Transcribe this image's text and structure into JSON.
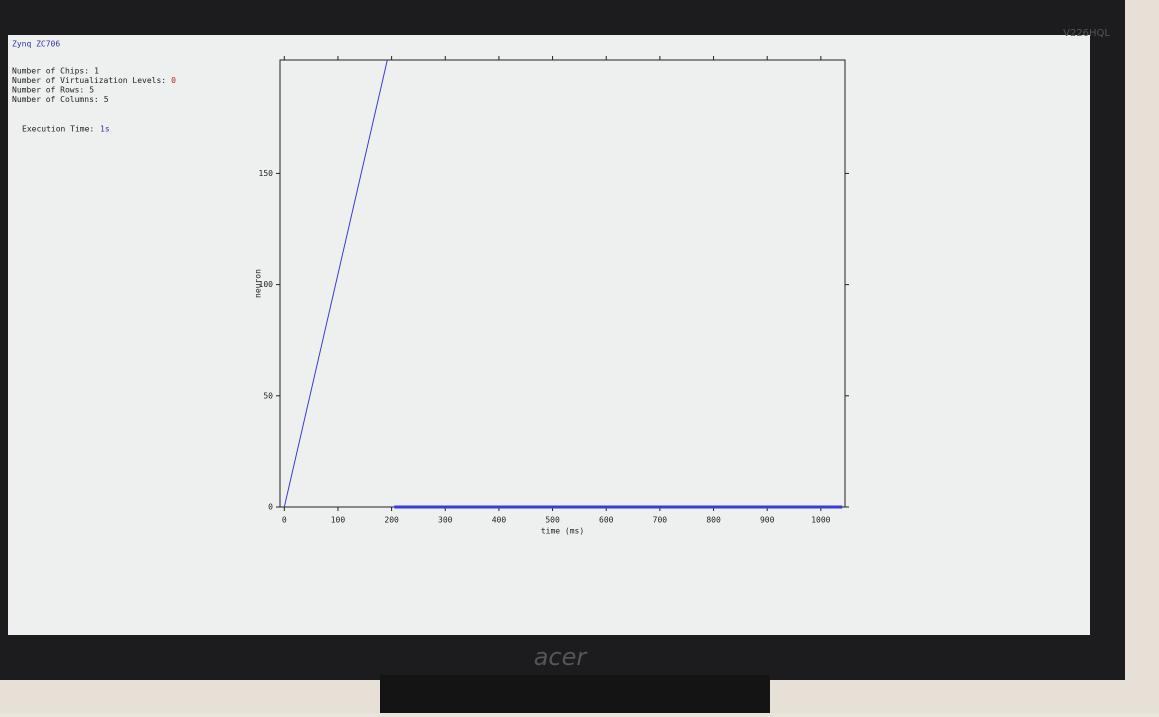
{
  "monitor": {
    "brand": "acer",
    "model": "V226HQL"
  },
  "info": {
    "board": "Zynq ZC706",
    "lines": [
      {
        "label": "Number of Chips:",
        "value": "1"
      },
      {
        "label": "Number of Virtualization Levels:",
        "value": "0"
      },
      {
        "label": "Number of Rows:",
        "value": "5"
      },
      {
        "label": "Number of Columns:",
        "value": "5"
      }
    ],
    "execution": {
      "label": "Execution Time:",
      "value": "1s"
    }
  },
  "chart_data": {
    "type": "line",
    "x_label": "time (ms)",
    "y_label": "neuron",
    "xlim": [
      -8,
      1045
    ],
    "ylim": [
      0,
      201
    ],
    "xticks": [
      0,
      100,
      200,
      300,
      400,
      500,
      600,
      700,
      800,
      900,
      1000
    ],
    "yticks": [
      0,
      50,
      100,
      150
    ],
    "series": [
      {
        "color": "#3b3bd6",
        "width": 1,
        "x": [
          0,
          192
        ],
        "values": [
          0,
          201
        ]
      },
      {
        "color": "#3b3bd6",
        "width": 3,
        "x": [
          205,
          1040
        ],
        "values": [
          0,
          0
        ]
      }
    ]
  }
}
